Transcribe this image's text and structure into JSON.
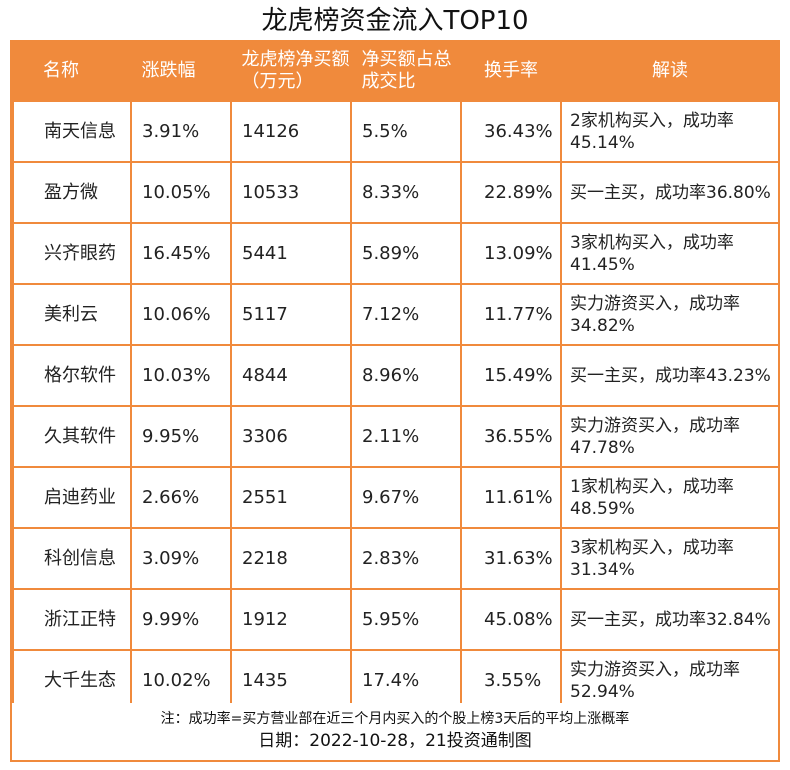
{
  "title": "龙虎榜资金流入TOP10",
  "table": {
    "headers": [
      "名称",
      "涨跌幅",
      "龙虎榜净买额（万元）",
      "净买额占总成交比",
      "换手率",
      "解读"
    ],
    "rows": [
      {
        "name": "南天信息",
        "change": "3.91%",
        "net_buy": "14126",
        "ratio": "5.5%",
        "turnover": "36.43%",
        "desc": "2家机构买入，成功率45.14%"
      },
      {
        "name": "盈方微",
        "change": "10.05%",
        "net_buy": "10533",
        "ratio": "8.33%",
        "turnover": "22.89%",
        "desc": "买一主买，成功率36.80%"
      },
      {
        "name": "兴齐眼药",
        "change": "16.45%",
        "net_buy": "5441",
        "ratio": "5.89%",
        "turnover": "13.09%",
        "desc": "3家机构买入，成功率41.45%"
      },
      {
        "name": "美利云",
        "change": "10.06%",
        "net_buy": "5117",
        "ratio": "7.12%",
        "turnover": "11.77%",
        "desc": "实力游资买入，成功率34.82%"
      },
      {
        "name": "格尔软件",
        "change": "10.03%",
        "net_buy": "4844",
        "ratio": "8.96%",
        "turnover": "15.49%",
        "desc": "买一主买，成功率43.23%"
      },
      {
        "name": "久其软件",
        "change": "9.95%",
        "net_buy": "3306",
        "ratio": "2.11%",
        "turnover": "36.55%",
        "desc": "实力游资买入，成功率47.78%"
      },
      {
        "name": "启迪药业",
        "change": "2.66%",
        "net_buy": "2551",
        "ratio": "9.67%",
        "turnover": "11.61%",
        "desc": "1家机构买入，成功率48.59%"
      },
      {
        "name": "科创信息",
        "change": "3.09%",
        "net_buy": "2218",
        "ratio": "2.83%",
        "turnover": "31.63%",
        "desc": "3家机构买入，成功率31.34%"
      },
      {
        "name": "浙江正特",
        "change": "9.99%",
        "net_buy": "1912",
        "ratio": "5.95%",
        "turnover": "45.08%",
        "desc": "买一主买，成功率32.84%"
      },
      {
        "name": "大千生态",
        "change": "10.02%",
        "net_buy": "1435",
        "ratio": "17.4%",
        "turnover": "3.55%",
        "desc": "实力游资买入，成功率52.94%"
      }
    ]
  },
  "footer": {
    "note": "注：成功率=买方营业部在近三个月内买入的个股上榜3天后的平均上涨概率",
    "credit": "日期：2022-10-28，21投资通制图"
  },
  "colors": {
    "accent": "#f08a3c"
  }
}
